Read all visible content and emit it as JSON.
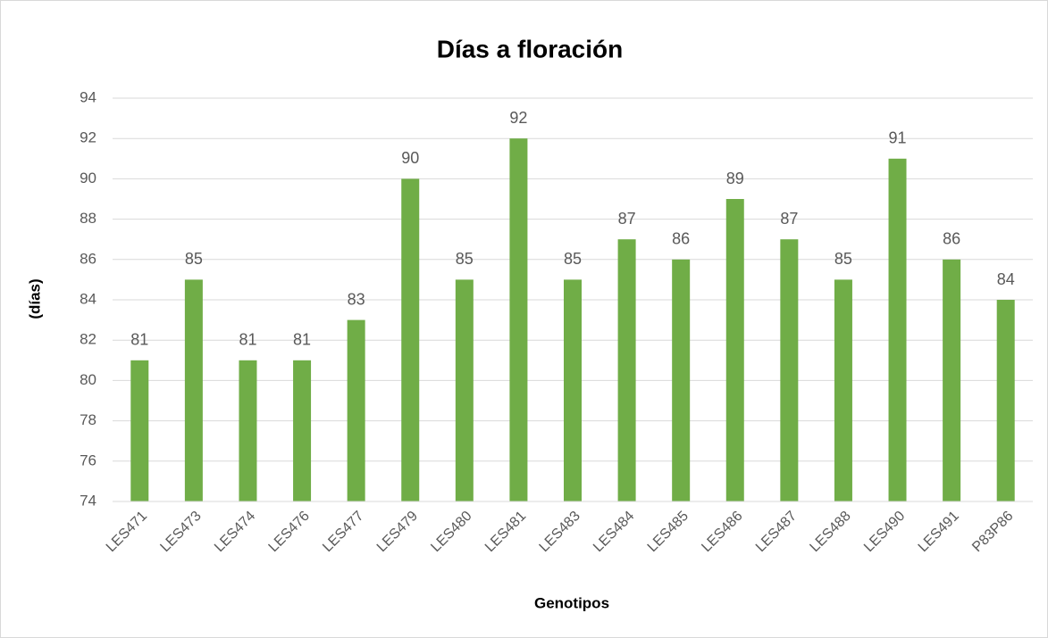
{
  "chart_data": {
    "type": "bar",
    "title": "Días a floración",
    "x_label": "Genotipos",
    "y_label": "(días)",
    "categories": [
      "LES471",
      "LES473",
      "LES474",
      "LES476",
      "LES477",
      "LES479",
      "LES480",
      "LES481",
      "LES483",
      "LES484",
      "LES485",
      "LES486",
      "LES487",
      "LES488",
      "LES490",
      "LES491",
      "P83P86"
    ],
    "values": [
      81,
      85,
      81,
      81,
      83,
      90,
      85,
      92,
      85,
      87,
      86,
      89,
      87,
      85,
      91,
      86,
      84
    ],
    "color": "#70ad47",
    "ylim": [
      74,
      94
    ],
    "yticks": [
      74,
      76,
      78,
      80,
      82,
      84,
      86,
      88,
      90,
      92,
      94
    ],
    "grid": true
  }
}
